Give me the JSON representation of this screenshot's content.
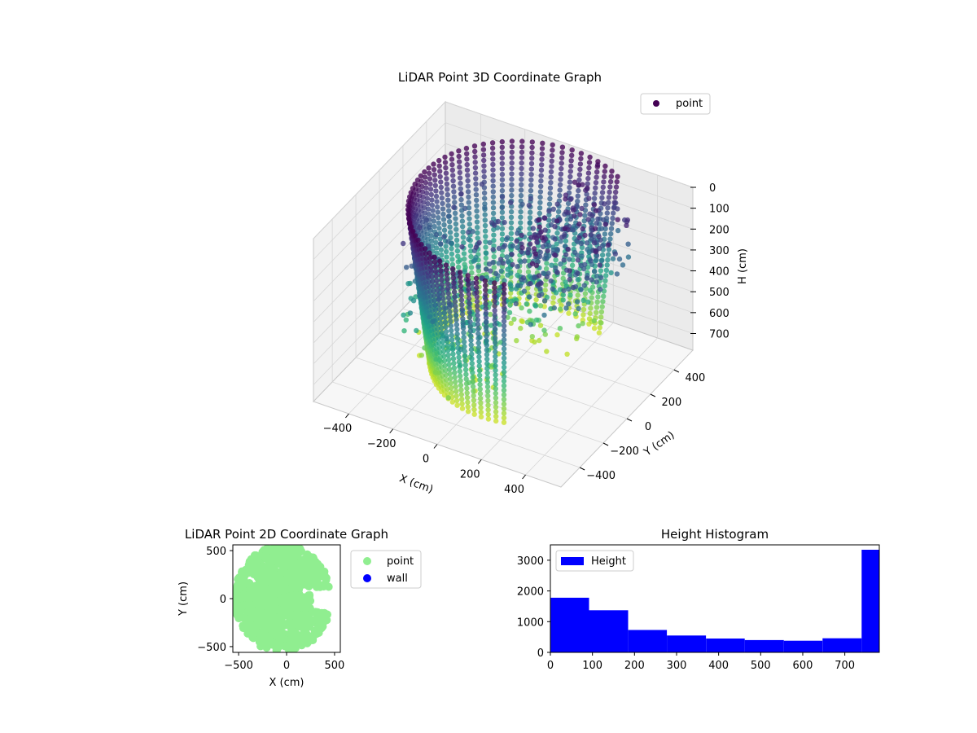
{
  "colors": {
    "viridis_low": "#440154",
    "viridis_mid": "#21918c",
    "viridis_high": "#fde725",
    "point_2d": "#90ee90",
    "wall": "#0000ff",
    "hist_bar": "#0000ff",
    "pane": "#f2f2f2",
    "pane_grid": "#d6d6d6"
  },
  "chart_data": [
    {
      "type": "scatter",
      "projection": "3d",
      "title": "LiDAR Point 3D Coordinate Graph",
      "xlabel": "X (cm)",
      "ylabel": "Y (cm)",
      "zlabel": "H (cm)",
      "xlim": [
        -560,
        560
      ],
      "ylim": [
        -560,
        560
      ],
      "zlim": [
        780,
        0
      ],
      "z_axis_inverted": true,
      "colormap": "viridis",
      "xticks": [
        -400,
        -200,
        0,
        200,
        400
      ],
      "xtick_labels": [
        "−400",
        "−200",
        "0",
        "200",
        "400"
      ],
      "yticks": [
        -400,
        -200,
        0,
        200,
        400
      ],
      "ytick_labels": [
        "−400",
        "−200",
        "0",
        "200",
        "400"
      ],
      "zticks": [
        0,
        100,
        200,
        300,
        400,
        500,
        600,
        700
      ],
      "ztick_labels": [
        "0",
        "100",
        "200",
        "300",
        "400",
        "500",
        "600",
        "700"
      ],
      "legend": {
        "entries": [
          "point"
        ],
        "position": "upper-right"
      },
      "grid": true,
      "series": [
        {
          "name": "point",
          "description_of_shape": "cylindrical wall of vertical point columns from angle ~60° to ~300°, radius ~380–540 cm, heights 0–720 cm; scattered obstacle points inside",
          "wall_sample": {
            "radius": [
              380,
              540
            ],
            "angle_deg": [
              60,
              300
            ],
            "height": [
              0,
              720
            ]
          }
        }
      ]
    },
    {
      "type": "scatter",
      "title": "LiDAR Point 2D Coordinate Graph",
      "xlabel": "X (cm)",
      "ylabel": "Y (cm)",
      "xlim": [
        -560,
        560
      ],
      "ylim": [
        -560,
        560
      ],
      "xticks": [
        -500,
        0,
        500
      ],
      "xtick_labels": [
        "−500",
        "0",
        "500"
      ],
      "yticks": [
        -500,
        0,
        500
      ],
      "ytick_labels": [
        "−500",
        "0",
        "500"
      ],
      "legend": {
        "entries": [
          "point",
          "wall"
        ],
        "position": "outside-right"
      },
      "series": [
        {
          "name": "point",
          "color": "#90ee90",
          "shape": "filled disk of points, x from -560 to ~250, bulge to right near y≈±300"
        },
        {
          "name": "wall",
          "color": "#0000ff",
          "values": []
        }
      ]
    },
    {
      "type": "bar",
      "title": "Height Histogram",
      "xlabel": "",
      "ylabel": "",
      "xlim": [
        0,
        782
      ],
      "ylim": [
        0,
        3500
      ],
      "xticks": [
        0,
        100,
        200,
        300,
        400,
        500,
        600,
        700
      ],
      "xtick_labels": [
        "0",
        "100",
        "200",
        "300",
        "400",
        "500",
        "600",
        "700"
      ],
      "yticks": [
        0,
        1000,
        2000,
        3000
      ],
      "ytick_labels": [
        "0",
        "1000",
        "2000",
        "3000"
      ],
      "legend": {
        "entries": [
          "Height"
        ],
        "position": "upper-left"
      },
      "bin_edges": [
        0,
        92,
        185,
        277,
        370,
        462,
        555,
        647,
        740,
        832
      ],
      "series": [
        {
          "name": "Height",
          "values": [
            1780,
            1370,
            730,
            550,
            450,
            400,
            380,
            460,
            3340
          ]
        }
      ]
    }
  ]
}
